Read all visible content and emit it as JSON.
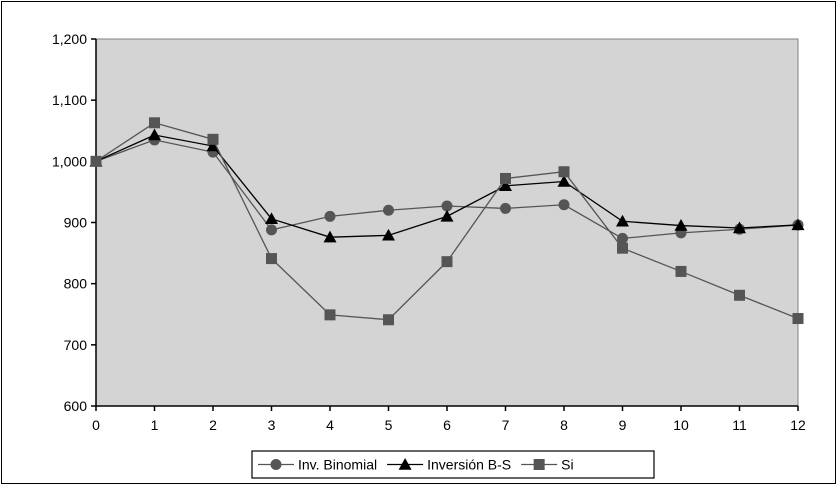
{
  "chart_data": {
    "type": "line",
    "title": "",
    "xlabel": "",
    "ylabel": "",
    "x": [
      0,
      1,
      2,
      3,
      4,
      5,
      6,
      7,
      8,
      9,
      10,
      11,
      12
    ],
    "x_tick_labels": [
      "0",
      "1",
      "2",
      "3",
      "4",
      "5",
      "6",
      "7",
      "8",
      "9",
      "10",
      "11",
      "12"
    ],
    "ylim": [
      600,
      1200
    ],
    "y_ticks": [
      600,
      700,
      800,
      900,
      1000,
      1100,
      1200
    ],
    "y_tick_labels": [
      "600",
      "700",
      "800",
      "900",
      "1,000",
      "1,100",
      "1,200"
    ],
    "grid": false,
    "plot_background": "#d4d4d4",
    "legend_position": "bottom",
    "series": [
      {
        "name": "Inv. Binomial",
        "marker": "circle",
        "color": "#555555",
        "values": [
          1000,
          1035,
          1015,
          888,
          910,
          920,
          927,
          923,
          929,
          874,
          883,
          889,
          896
        ]
      },
      {
        "name": "Inversión B-S",
        "marker": "triangle",
        "color": "#000000",
        "values": [
          1000,
          1043,
          1025,
          906,
          876,
          879,
          910,
          960,
          967,
          902,
          895,
          891,
          896
        ]
      },
      {
        "name": "Si",
        "marker": "square",
        "color": "#555555",
        "values": [
          1000,
          1063,
          1036,
          841,
          749,
          741,
          836,
          972,
          983,
          858,
          820,
          781,
          743
        ]
      }
    ]
  }
}
